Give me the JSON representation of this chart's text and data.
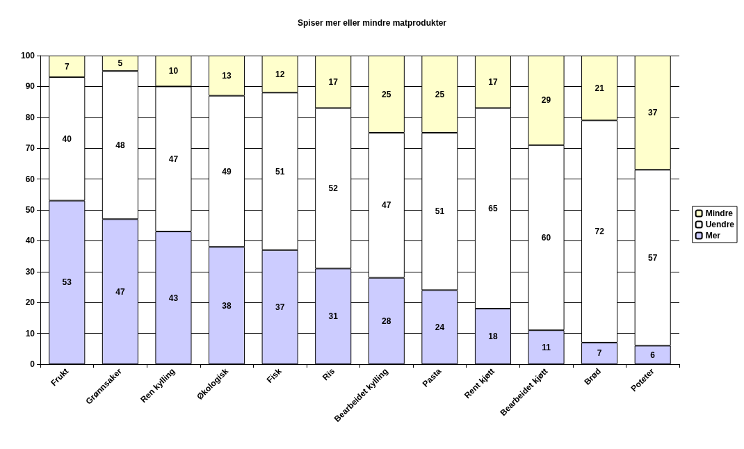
{
  "chart_data": {
    "type": "bar",
    "title": "Spiser mer eller mindre matprodukter",
    "categories": [
      "Frukt",
      "Grønnsaker",
      "Ren kylling",
      "Økologisk",
      "Fisk",
      "Ris",
      "Bearbeidet kylling",
      "Pasta",
      "Rent kjøtt",
      "Bearbeidet kjøtt",
      "Brød",
      "Poteter"
    ],
    "series": [
      {
        "name": "Mer",
        "color": "#ccccff",
        "values": [
          53,
          47,
          43,
          38,
          37,
          31,
          28,
          24,
          18,
          11,
          7,
          6
        ]
      },
      {
        "name": "Uendre",
        "color": "#ffffff",
        "values": [
          40,
          48,
          47,
          49,
          51,
          52,
          47,
          51,
          65,
          60,
          72,
          57
        ]
      },
      {
        "name": "Mindre",
        "color": "#ffffcc",
        "values": [
          7,
          5,
          10,
          13,
          12,
          17,
          25,
          25,
          17,
          29,
          21,
          37
        ]
      }
    ],
    "stacked": true,
    "ylim": [
      0,
      100
    ],
    "yticks": [
      0,
      10,
      20,
      30,
      40,
      50,
      60,
      70,
      80,
      90,
      100
    ],
    "grid": "y",
    "legend": "right",
    "data_labels": true
  }
}
